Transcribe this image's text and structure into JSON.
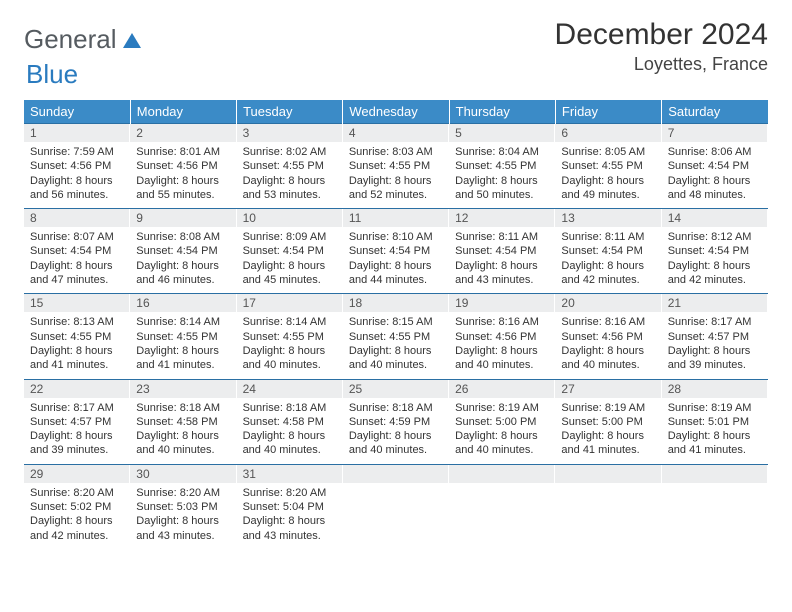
{
  "logo": {
    "text1": "General",
    "text2": "Blue"
  },
  "title": "December 2024",
  "location": "Loyettes, France",
  "colors": {
    "header_bg": "#3b8bc7",
    "header_text": "#ffffff",
    "dayhead_bg": "#ecedee",
    "row_border": "#2a6fa3",
    "logo_gray": "#555b60",
    "logo_blue": "#2a7bbf"
  },
  "weekdays": [
    "Sunday",
    "Monday",
    "Tuesday",
    "Wednesday",
    "Thursday",
    "Friday",
    "Saturday"
  ],
  "weeks": [
    [
      {
        "n": "1",
        "sunrise": "Sunrise: 7:59 AM",
        "sunset": "Sunset: 4:56 PM",
        "daylight": "Daylight: 8 hours and 56 minutes."
      },
      {
        "n": "2",
        "sunrise": "Sunrise: 8:01 AM",
        "sunset": "Sunset: 4:56 PM",
        "daylight": "Daylight: 8 hours and 55 minutes."
      },
      {
        "n": "3",
        "sunrise": "Sunrise: 8:02 AM",
        "sunset": "Sunset: 4:55 PM",
        "daylight": "Daylight: 8 hours and 53 minutes."
      },
      {
        "n": "4",
        "sunrise": "Sunrise: 8:03 AM",
        "sunset": "Sunset: 4:55 PM",
        "daylight": "Daylight: 8 hours and 52 minutes."
      },
      {
        "n": "5",
        "sunrise": "Sunrise: 8:04 AM",
        "sunset": "Sunset: 4:55 PM",
        "daylight": "Daylight: 8 hours and 50 minutes."
      },
      {
        "n": "6",
        "sunrise": "Sunrise: 8:05 AM",
        "sunset": "Sunset: 4:55 PM",
        "daylight": "Daylight: 8 hours and 49 minutes."
      },
      {
        "n": "7",
        "sunrise": "Sunrise: 8:06 AM",
        "sunset": "Sunset: 4:54 PM",
        "daylight": "Daylight: 8 hours and 48 minutes."
      }
    ],
    [
      {
        "n": "8",
        "sunrise": "Sunrise: 8:07 AM",
        "sunset": "Sunset: 4:54 PM",
        "daylight": "Daylight: 8 hours and 47 minutes."
      },
      {
        "n": "9",
        "sunrise": "Sunrise: 8:08 AM",
        "sunset": "Sunset: 4:54 PM",
        "daylight": "Daylight: 8 hours and 46 minutes."
      },
      {
        "n": "10",
        "sunrise": "Sunrise: 8:09 AM",
        "sunset": "Sunset: 4:54 PM",
        "daylight": "Daylight: 8 hours and 45 minutes."
      },
      {
        "n": "11",
        "sunrise": "Sunrise: 8:10 AM",
        "sunset": "Sunset: 4:54 PM",
        "daylight": "Daylight: 8 hours and 44 minutes."
      },
      {
        "n": "12",
        "sunrise": "Sunrise: 8:11 AM",
        "sunset": "Sunset: 4:54 PM",
        "daylight": "Daylight: 8 hours and 43 minutes."
      },
      {
        "n": "13",
        "sunrise": "Sunrise: 8:11 AM",
        "sunset": "Sunset: 4:54 PM",
        "daylight": "Daylight: 8 hours and 42 minutes."
      },
      {
        "n": "14",
        "sunrise": "Sunrise: 8:12 AM",
        "sunset": "Sunset: 4:54 PM",
        "daylight": "Daylight: 8 hours and 42 minutes."
      }
    ],
    [
      {
        "n": "15",
        "sunrise": "Sunrise: 8:13 AM",
        "sunset": "Sunset: 4:55 PM",
        "daylight": "Daylight: 8 hours and 41 minutes."
      },
      {
        "n": "16",
        "sunrise": "Sunrise: 8:14 AM",
        "sunset": "Sunset: 4:55 PM",
        "daylight": "Daylight: 8 hours and 41 minutes."
      },
      {
        "n": "17",
        "sunrise": "Sunrise: 8:14 AM",
        "sunset": "Sunset: 4:55 PM",
        "daylight": "Daylight: 8 hours and 40 minutes."
      },
      {
        "n": "18",
        "sunrise": "Sunrise: 8:15 AM",
        "sunset": "Sunset: 4:55 PM",
        "daylight": "Daylight: 8 hours and 40 minutes."
      },
      {
        "n": "19",
        "sunrise": "Sunrise: 8:16 AM",
        "sunset": "Sunset: 4:56 PM",
        "daylight": "Daylight: 8 hours and 40 minutes."
      },
      {
        "n": "20",
        "sunrise": "Sunrise: 8:16 AM",
        "sunset": "Sunset: 4:56 PM",
        "daylight": "Daylight: 8 hours and 40 minutes."
      },
      {
        "n": "21",
        "sunrise": "Sunrise: 8:17 AM",
        "sunset": "Sunset: 4:57 PM",
        "daylight": "Daylight: 8 hours and 39 minutes."
      }
    ],
    [
      {
        "n": "22",
        "sunrise": "Sunrise: 8:17 AM",
        "sunset": "Sunset: 4:57 PM",
        "daylight": "Daylight: 8 hours and 39 minutes."
      },
      {
        "n": "23",
        "sunrise": "Sunrise: 8:18 AM",
        "sunset": "Sunset: 4:58 PM",
        "daylight": "Daylight: 8 hours and 40 minutes."
      },
      {
        "n": "24",
        "sunrise": "Sunrise: 8:18 AM",
        "sunset": "Sunset: 4:58 PM",
        "daylight": "Daylight: 8 hours and 40 minutes."
      },
      {
        "n": "25",
        "sunrise": "Sunrise: 8:18 AM",
        "sunset": "Sunset: 4:59 PM",
        "daylight": "Daylight: 8 hours and 40 minutes."
      },
      {
        "n": "26",
        "sunrise": "Sunrise: 8:19 AM",
        "sunset": "Sunset: 5:00 PM",
        "daylight": "Daylight: 8 hours and 40 minutes."
      },
      {
        "n": "27",
        "sunrise": "Sunrise: 8:19 AM",
        "sunset": "Sunset: 5:00 PM",
        "daylight": "Daylight: 8 hours and 41 minutes."
      },
      {
        "n": "28",
        "sunrise": "Sunrise: 8:19 AM",
        "sunset": "Sunset: 5:01 PM",
        "daylight": "Daylight: 8 hours and 41 minutes."
      }
    ],
    [
      {
        "n": "29",
        "sunrise": "Sunrise: 8:20 AM",
        "sunset": "Sunset: 5:02 PM",
        "daylight": "Daylight: 8 hours and 42 minutes."
      },
      {
        "n": "30",
        "sunrise": "Sunrise: 8:20 AM",
        "sunset": "Sunset: 5:03 PM",
        "daylight": "Daylight: 8 hours and 43 minutes."
      },
      {
        "n": "31",
        "sunrise": "Sunrise: 8:20 AM",
        "sunset": "Sunset: 5:04 PM",
        "daylight": "Daylight: 8 hours and 43 minutes."
      },
      {
        "n": "",
        "empty": true
      },
      {
        "n": "",
        "empty": true
      },
      {
        "n": "",
        "empty": true
      },
      {
        "n": "",
        "empty": true
      }
    ]
  ]
}
